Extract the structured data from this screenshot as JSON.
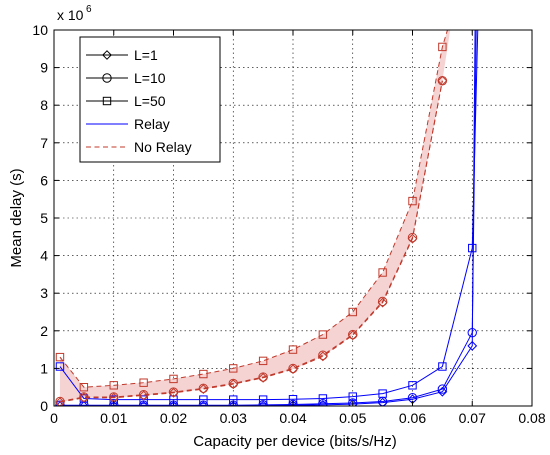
{
  "chart_data": {
    "type": "line",
    "title": "",
    "xlabel": "Capacity per device (bits/s/Hz)",
    "ylabel": "Mean delay (s)",
    "y_multiplier_label": "x 10",
    "y_multiplier_exponent": "6",
    "xlim": [
      0,
      0.08
    ],
    "ylim": [
      0,
      10
    ],
    "x_ticks": [
      0,
      0.01,
      0.02,
      0.03,
      0.04,
      0.05,
      0.06,
      0.07,
      0.08
    ],
    "x_tick_labels": [
      "0",
      "0.01",
      "0.02",
      "0.03",
      "0.04",
      "0.05",
      "0.06",
      "0.07",
      "0.08"
    ],
    "y_ticks": [
      0,
      1,
      2,
      3,
      4,
      5,
      6,
      7,
      8,
      9,
      10
    ],
    "y_tick_labels": [
      "0",
      "1",
      "2",
      "3",
      "4",
      "5",
      "6",
      "7",
      "8",
      "9",
      "10"
    ],
    "grid": true,
    "legend_position": "top-left",
    "legend": [
      {
        "label": "L=1",
        "marker": "diamond",
        "style": "solid",
        "color": "#000000"
      },
      {
        "label": "L=10",
        "marker": "circle",
        "style": "solid",
        "color": "#000000"
      },
      {
        "label": "L=50",
        "marker": "square",
        "style": "solid",
        "color": "#000000"
      },
      {
        "label": "Relay",
        "marker": "none",
        "style": "solid",
        "color": "#0000ff"
      },
      {
        "label": "No Relay",
        "marker": "none",
        "style": "dashed",
        "color": "#c0392b"
      }
    ],
    "colors": {
      "relay": "#0000ff",
      "no_relay": "#c0392b",
      "no_relay_band": "#f6d3d3"
    },
    "series": [
      {
        "name": "",
        "relay": true,
        "marker": "diamond",
        "x": [
          0.001,
          0.005,
          0.01,
          0.015,
          0.02,
          0.025,
          0.03,
          0.035,
          0.04,
          0.045,
          0.05,
          0.055,
          0.06,
          0.065,
          0.07,
          0.0705
        ],
        "y": [
          0.0,
          0.0,
          0.0,
          0.0,
          0.0,
          0.0,
          0.0,
          0.01,
          0.02,
          0.03,
          0.05,
          0.09,
          0.18,
          0.38,
          1.6,
          10.5
        ]
      },
      {
        "name": "",
        "relay": true,
        "marker": "circle",
        "x": [
          0.001,
          0.005,
          0.01,
          0.015,
          0.02,
          0.025,
          0.03,
          0.035,
          0.04,
          0.045,
          0.05,
          0.055,
          0.06,
          0.065,
          0.07,
          0.0707
        ],
        "y": [
          0.02,
          0.02,
          0.02,
          0.02,
          0.02,
          0.02,
          0.02,
          0.03,
          0.04,
          0.06,
          0.08,
          0.12,
          0.22,
          0.45,
          1.95,
          10.5
        ]
      },
      {
        "name": "",
        "relay": true,
        "marker": "square",
        "x": [
          0.001,
          0.005,
          0.01,
          0.015,
          0.02,
          0.025,
          0.03,
          0.035,
          0.04,
          0.045,
          0.05,
          0.055,
          0.06,
          0.065,
          0.07,
          0.071
        ],
        "y": [
          1.05,
          0.2,
          0.17,
          0.17,
          0.17,
          0.17,
          0.17,
          0.17,
          0.18,
          0.2,
          0.25,
          0.33,
          0.55,
          1.05,
          4.2,
          10.5
        ]
      },
      {
        "name": "",
        "relay": false,
        "marker": "diamond",
        "x": [
          0.001,
          0.005,
          0.01,
          0.015,
          0.02,
          0.025,
          0.03,
          0.035,
          0.04,
          0.045,
          0.05,
          0.055,
          0.06,
          0.065
        ],
        "y": [
          0.1,
          0.22,
          0.22,
          0.28,
          0.35,
          0.45,
          0.58,
          0.75,
          0.98,
          1.32,
          1.88,
          2.75,
          4.45,
          8.65
        ]
      },
      {
        "name": "",
        "relay": false,
        "marker": "circle",
        "x": [
          0.001,
          0.005,
          0.01,
          0.015,
          0.02,
          0.025,
          0.03,
          0.035,
          0.04,
          0.045,
          0.05,
          0.055,
          0.06,
          0.065
        ],
        "y": [
          0.12,
          0.24,
          0.24,
          0.3,
          0.37,
          0.47,
          0.6,
          0.77,
          1.0,
          1.35,
          1.9,
          2.78,
          4.48,
          8.65
        ]
      },
      {
        "name": "",
        "relay": false,
        "marker": "square",
        "x": [
          0.001,
          0.005,
          0.01,
          0.015,
          0.02,
          0.025,
          0.03,
          0.035,
          0.04,
          0.045,
          0.05,
          0.055,
          0.06,
          0.065,
          0.0668
        ],
        "y": [
          1.3,
          0.5,
          0.55,
          0.62,
          0.72,
          0.85,
          1.0,
          1.2,
          1.5,
          1.9,
          2.5,
          3.55,
          5.45,
          9.55,
          10.5
        ]
      }
    ]
  }
}
